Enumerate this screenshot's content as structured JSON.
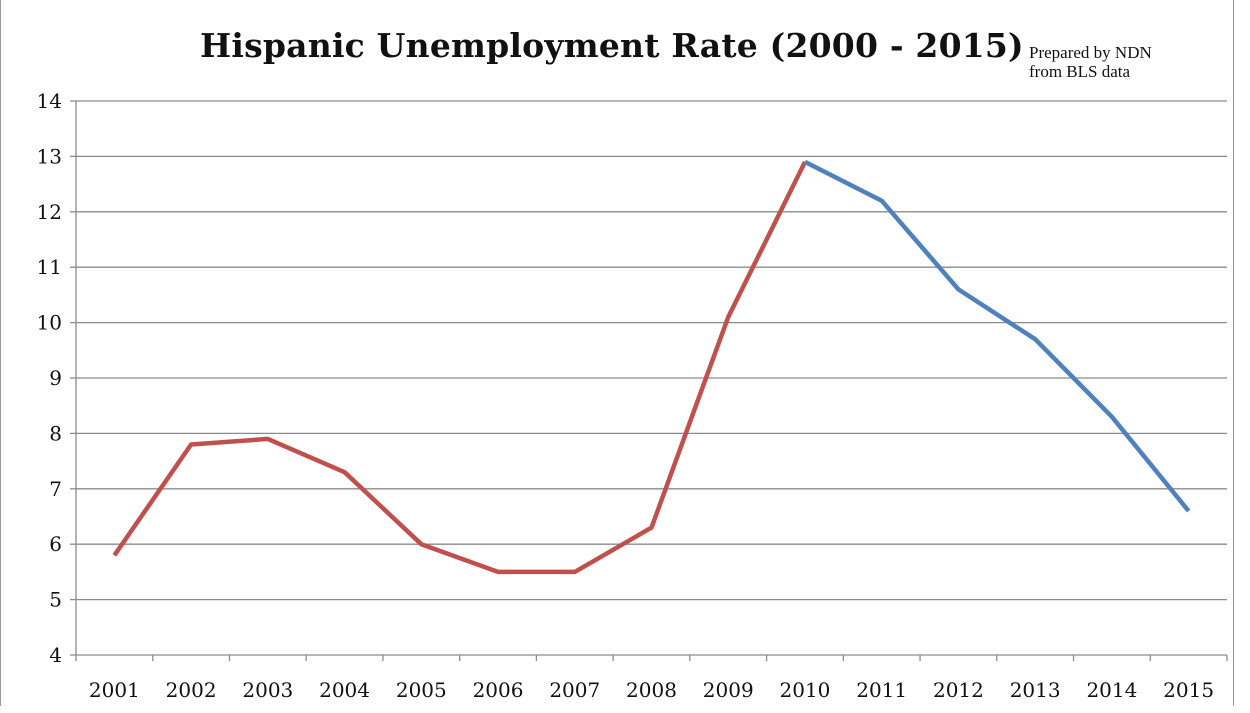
{
  "chart_data": {
    "type": "line",
    "title": "Hispanic Unemployment Rate (2000 - 2015)",
    "xlabel": "",
    "ylabel": "",
    "x": [
      "2001",
      "2002",
      "2003",
      "2004",
      "2005",
      "2006",
      "2007",
      "2008",
      "2009",
      "2010",
      "2011",
      "2012",
      "2013",
      "2014",
      "2015"
    ],
    "ylim": [
      4,
      14
    ],
    "yticks": [
      4,
      5,
      6,
      7,
      8,
      9,
      10,
      11,
      12,
      13,
      14
    ],
    "grid": true,
    "legend": "none",
    "series": [
      {
        "color": "#c0504d",
        "x": [
          "2001",
          "2002",
          "2003",
          "2004",
          "2005",
          "2006",
          "2007",
          "2008",
          "2009",
          "2010"
        ],
        "values": [
          5.8,
          7.8,
          7.9,
          7.3,
          6.0,
          5.5,
          5.5,
          6.3,
          10.1,
          12.9
        ]
      },
      {
        "color": "#4f81bd",
        "x": [
          "2010",
          "2011",
          "2012",
          "2013",
          "2014",
          "2015"
        ],
        "values": [
          12.9,
          12.2,
          10.6,
          9.7,
          8.3,
          6.6
        ]
      }
    ]
  },
  "annotation": {
    "line1": "Prepared by NDN",
    "line2": "from BLS data"
  }
}
